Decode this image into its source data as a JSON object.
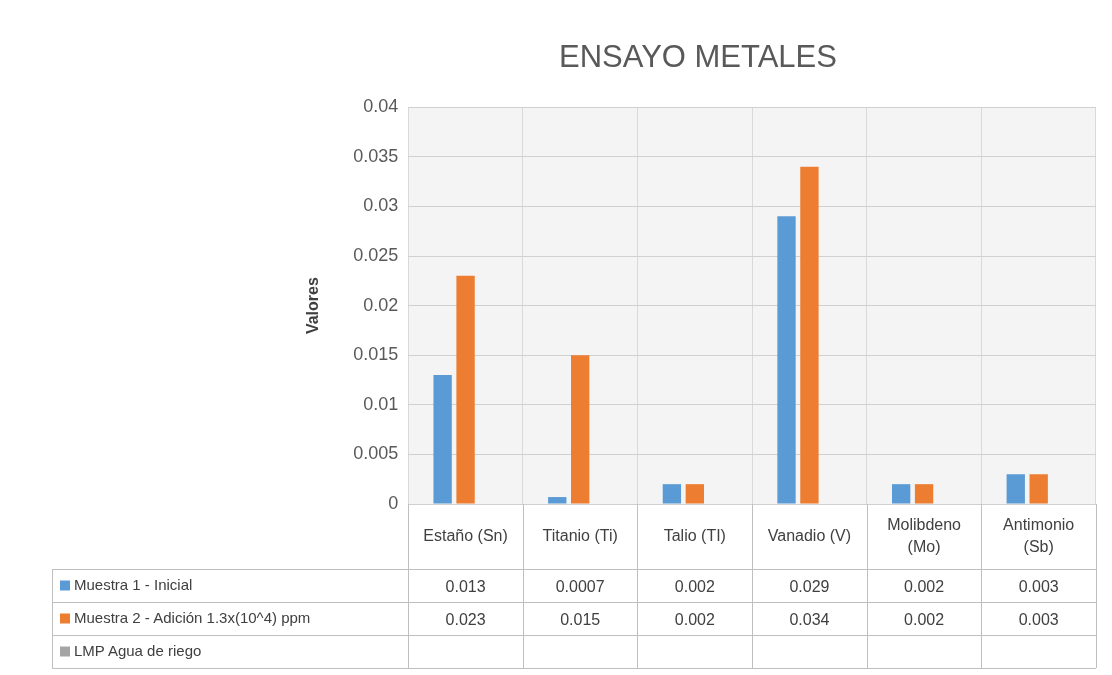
{
  "chart_data": {
    "type": "bar",
    "title": "ENSAYO METALES",
    "ylabel": "Valores",
    "categories": [
      "Estaño (Sn)",
      "Titanio (Ti)",
      "Talio (TI)",
      "Vanadio (V)",
      "Molibdeno (Mo)",
      "Antimonio (Sb)"
    ],
    "series": [
      {
        "name": "Muestra 1 - Inicial",
        "color": "#5b9bd5",
        "values": [
          0.013,
          0.0007,
          0.002,
          0.029,
          0.002,
          0.003
        ]
      },
      {
        "name": "Muestra 2 - Adición 1.3x(10^4) ppm",
        "color": "#ed7d31",
        "values": [
          0.023,
          0.015,
          0.002,
          0.034,
          0.002,
          0.003
        ]
      },
      {
        "name": "LMP Agua de riego",
        "color": "#a5a5a5",
        "values": [
          null,
          null,
          null,
          null,
          null,
          null
        ]
      }
    ],
    "ylim": [
      0,
      0.04
    ],
    "yticks": [
      0,
      0.005,
      0.01,
      0.015,
      0.02,
      0.025,
      0.03,
      0.035,
      0.04
    ],
    "grid": true,
    "legend": "bottom",
    "data_labels": true
  }
}
